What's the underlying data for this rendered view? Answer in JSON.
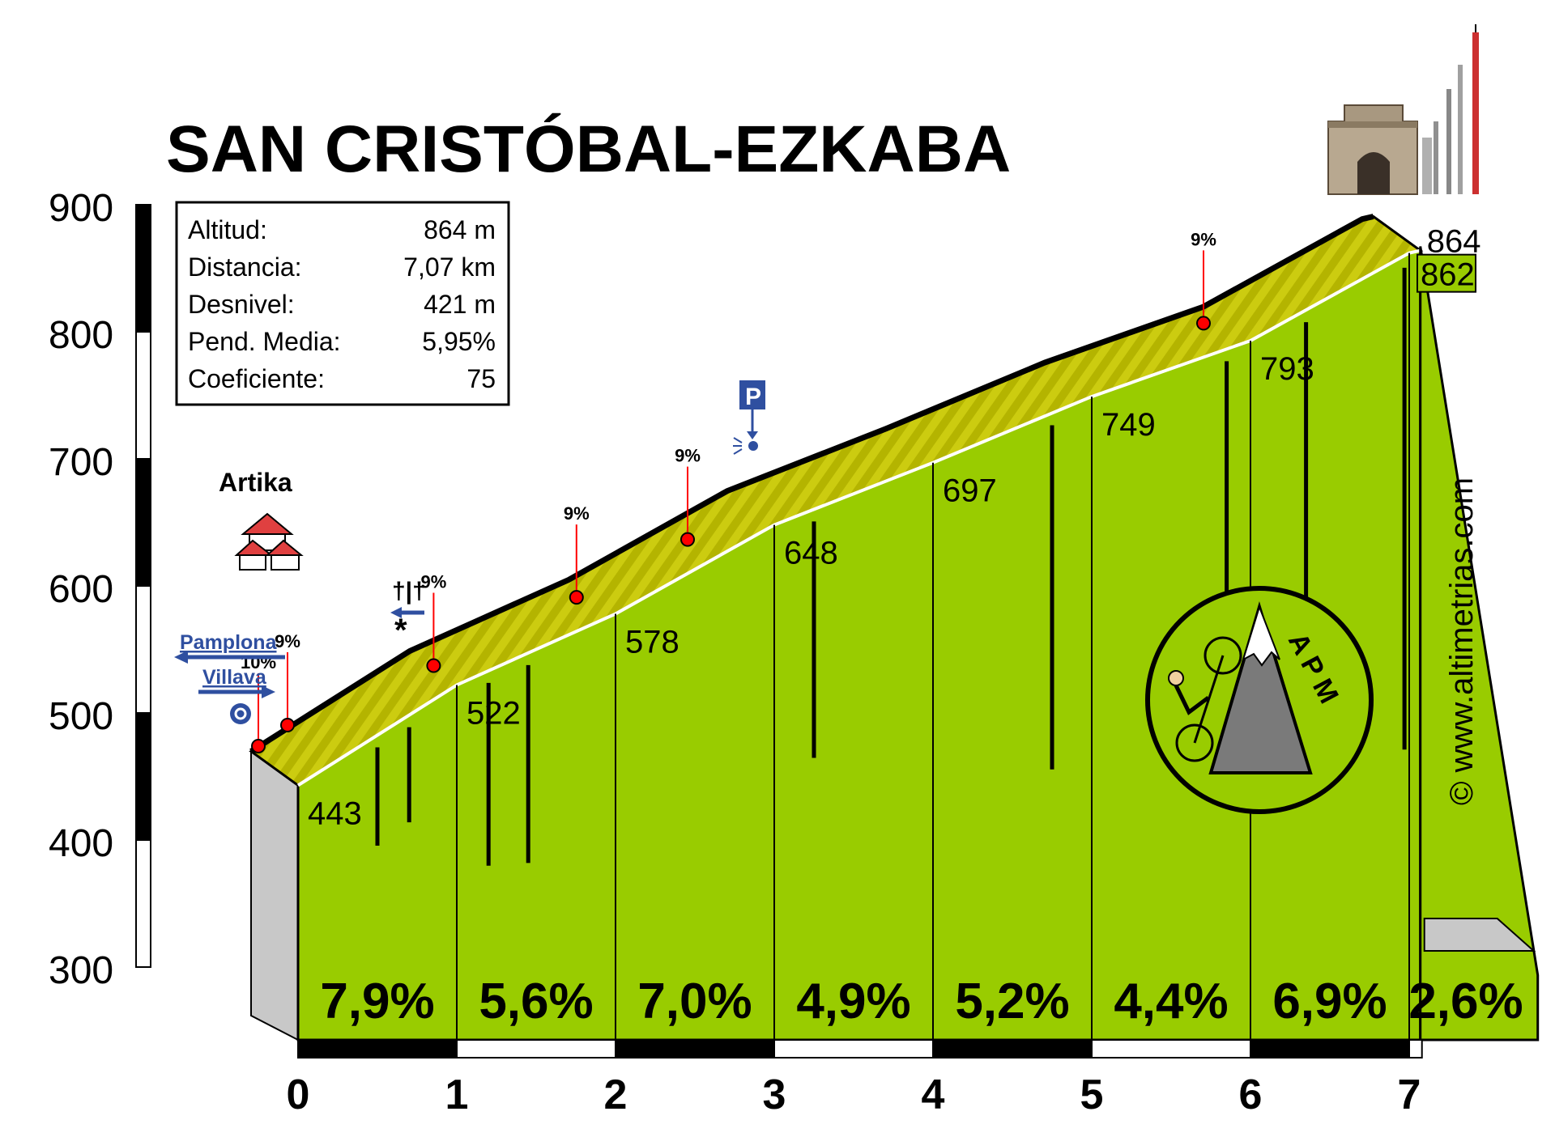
{
  "chart_data": {
    "type": "area",
    "title": "SAN CRISTÓBAL-EZKABA",
    "xlabel": "",
    "ylabel": "",
    "xlim": [
      0,
      7.07
    ],
    "ylim": [
      300,
      900
    ],
    "x_ticks": [
      "0",
      "1",
      "2",
      "3",
      "4",
      "5",
      "6",
      "7"
    ],
    "y_ticks": [
      "300",
      "400",
      "500",
      "600",
      "700",
      "800",
      "900"
    ],
    "stats": [
      {
        "label": "Altitud:",
        "value": "864 m"
      },
      {
        "label": "Distancia:",
        "value": "7,07 km"
      },
      {
        "label": "Desnivel:",
        "value": "421 m"
      },
      {
        "label": "Pend. Media:",
        "value": "5,95%"
      },
      {
        "label": "Coeficiente:",
        "value": "75"
      }
    ],
    "km_points": [
      {
        "x": 0,
        "y": 443,
        "label": "443"
      },
      {
        "x": 1,
        "y": 522,
        "label": "522"
      },
      {
        "x": 2,
        "y": 578,
        "label": "578"
      },
      {
        "x": 3,
        "y": 648,
        "label": "648"
      },
      {
        "x": 4,
        "y": 697,
        "label": "697"
      },
      {
        "x": 5,
        "y": 749,
        "label": "749"
      },
      {
        "x": 6,
        "y": 793,
        "label": "793"
      },
      {
        "x": 7,
        "y": 862,
        "label": "862"
      }
    ],
    "summit": {
      "x": 7.07,
      "y": 864,
      "label": "864"
    },
    "segments": [
      {
        "from": 0,
        "to": 1,
        "gradient": "7,9%"
      },
      {
        "from": 1,
        "to": 2,
        "gradient": "5,6%"
      },
      {
        "from": 2,
        "to": 3,
        "gradient": "7,0%"
      },
      {
        "from": 3,
        "to": 4,
        "gradient": "4,9%"
      },
      {
        "from": 4,
        "to": 5,
        "gradient": "5,2%"
      },
      {
        "from": 5,
        "to": 6,
        "gradient": "4,4%"
      },
      {
        "from": 6,
        "to": 7,
        "gradient": "6,9%"
      },
      {
        "from": 7,
        "to": 7.07,
        "gradient": "2,6%"
      }
    ],
    "steep_markers": [
      {
        "x": -0.25,
        "label": "10%"
      },
      {
        "x": -0.05,
        "label": "9%"
      },
      {
        "x": 1.15,
        "label": "9%"
      },
      {
        "x": 2.05,
        "label": "9%"
      },
      {
        "x": 2.75,
        "label": "9%"
      },
      {
        "x": 6.0,
        "label": "9%"
      }
    ],
    "places": {
      "town": "Artika",
      "arrow_left": "Pamplona",
      "arrow_right": "Villava",
      "parking": "P",
      "cemetery": "†|†"
    },
    "logo": "A P M",
    "watermark": "© www.altimetrias.com",
    "colors": {
      "fill": "#99cc00",
      "ribbon": "#c8c800",
      "ribbon_dark": "#8c8c00",
      "marker": "#ff0000",
      "blue": "#2f4fa0",
      "gray": "#c8c8c8"
    }
  }
}
